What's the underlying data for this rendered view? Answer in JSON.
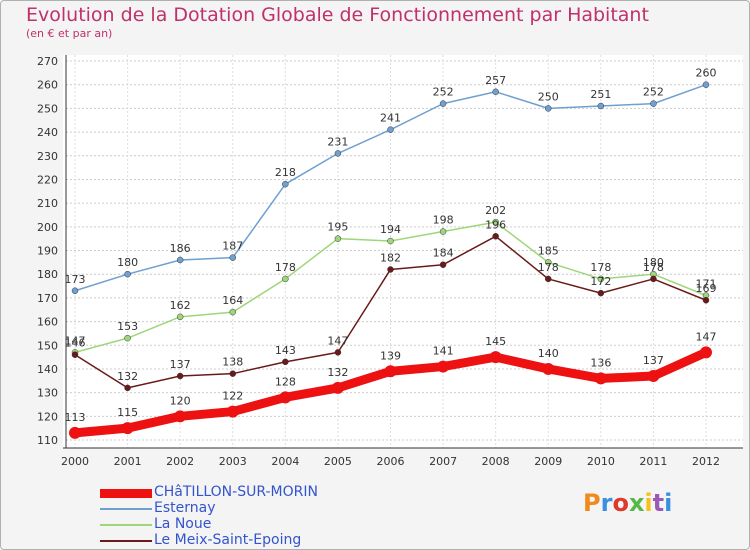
{
  "chart_data": {
    "type": "line",
    "title": "Evolution de la Dotation Globale de Fonctionnement par Habitant",
    "subtitle": "(en € et par an)",
    "x": [
      2000,
      2001,
      2002,
      2003,
      2004,
      2005,
      2006,
      2007,
      2008,
      2009,
      2010,
      2011,
      2012
    ],
    "ylim": [
      110,
      270
    ],
    "yticks": [
      110,
      120,
      130,
      140,
      150,
      160,
      170,
      180,
      190,
      200,
      210,
      220,
      230,
      240,
      250,
      260,
      270
    ],
    "grid": true,
    "legend_position": "bottom-left",
    "series": [
      {
        "name": "Esternay",
        "color": "#6fa0d0",
        "values": [
          173,
          180,
          186,
          187,
          218,
          231,
          241,
          252,
          257,
          250,
          251,
          252,
          260
        ]
      },
      {
        "name": "La Noue",
        "color": "#9fd67a",
        "values": [
          147,
          153,
          162,
          164,
          178,
          195,
          194,
          198,
          202,
          185,
          178,
          180,
          171
        ]
      },
      {
        "name": "Le Meix-Saint-Epoing",
        "color": "#6b1a1a",
        "values": [
          146,
          132,
          137,
          138,
          143,
          147,
          182,
          184,
          196,
          178,
          172,
          178,
          169
        ]
      },
      {
        "name": "CHâTILLON-SUR-MORIN",
        "color": "#ee1111",
        "values": [
          113,
          115,
          120,
          122,
          128,
          132,
          139,
          141,
          145,
          140,
          136,
          137,
          147
        ]
      }
    ]
  },
  "legend": [
    {
      "label": "CHâTILLON-SUR-MORIN",
      "color": "#ee1111"
    },
    {
      "label": "Esternay",
      "color": "#6fa0d0"
    },
    {
      "label": "La Noue",
      "color": "#9fd67a"
    },
    {
      "label": "Le Meix-Saint-Epoing",
      "color": "#6b1a1a"
    }
  ],
  "brand": {
    "text": "Proxiti"
  }
}
